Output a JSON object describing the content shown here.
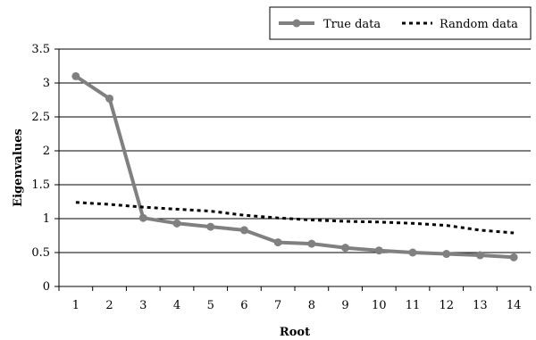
{
  "chart_data": {
    "type": "line",
    "xlabel": "Root",
    "ylabel": "Eigenvalues",
    "x": [
      1,
      2,
      3,
      4,
      5,
      6,
      7,
      8,
      9,
      10,
      11,
      12,
      13,
      14
    ],
    "xticks": [
      "1",
      "2",
      "3",
      "4",
      "5",
      "6",
      "7",
      "8",
      "9",
      "10",
      "11",
      "12",
      "13",
      "14"
    ],
    "ylim": [
      0,
      3.5
    ],
    "yticks": [
      "0",
      "0.5",
      "1",
      "1.5",
      "2",
      "2.5",
      "3",
      "3.5"
    ],
    "grid": "horizontal",
    "legend_position": "top-right",
    "series": [
      {
        "name": "True data",
        "style": "solid-markers",
        "color": "#808080",
        "values": [
          3.1,
          2.77,
          1.01,
          0.93,
          0.88,
          0.83,
          0.65,
          0.63,
          0.57,
          0.53,
          0.5,
          0.48,
          0.46,
          0.43
        ]
      },
      {
        "name": "Random data",
        "style": "dashed",
        "color": "#000000",
        "values": [
          1.24,
          1.21,
          1.17,
          1.14,
          1.11,
          1.05,
          1.01,
          0.98,
          0.96,
          0.95,
          0.93,
          0.9,
          0.83,
          0.79
        ]
      }
    ]
  }
}
